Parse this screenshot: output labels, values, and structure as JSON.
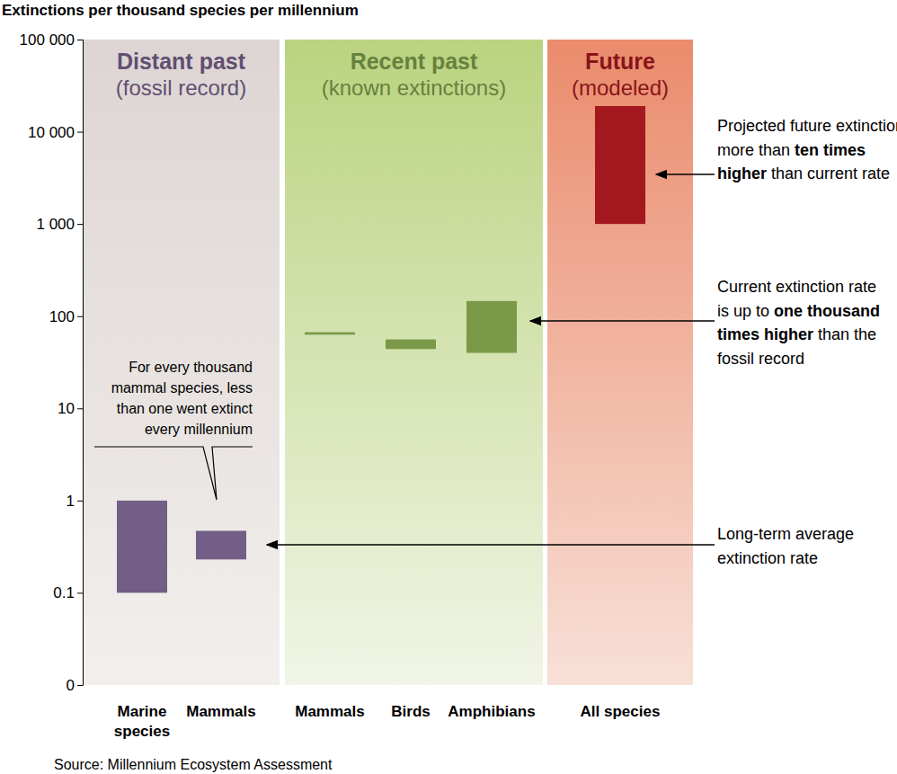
{
  "chart_data": {
    "type": "bar",
    "title": "Extinctions per thousand species per millennium",
    "log": "y",
    "ylim": [
      0.01,
      100000
    ],
    "yticks": [
      {
        "value": 0.01,
        "label": "0"
      },
      0.1,
      1,
      10,
      100,
      {
        "value": 1000,
        "label": "1 000"
      },
      {
        "value": 10000,
        "label": "10 000"
      },
      {
        "value": 100000,
        "label": "100 000"
      }
    ],
    "groups": [
      {
        "title": "Distant past",
        "subtitle": "(fossil record)",
        "color": "#735e87",
        "categories": [
          [
            "Marine",
            "species"
          ],
          [
            "Mammals"
          ]
        ],
        "values": [
          [
            0.1,
            1
          ],
          [
            0.23,
            0.47
          ]
        ]
      },
      {
        "title": "Recent past",
        "subtitle": "(known extinctions)",
        "color": "#7a9a4a",
        "categories": [
          [
            "Mammals"
          ],
          [
            "Birds"
          ],
          [
            "Amphibians"
          ]
        ],
        "values": [
          [
            63,
            67
          ],
          [
            44,
            56
          ],
          [
            40,
            146
          ]
        ]
      },
      {
        "title": "Future",
        "subtitle": "(modeled)",
        "color": "#a3181e",
        "categories": [
          [
            "All species"
          ]
        ],
        "values": [
          [
            1000,
            19000
          ]
        ]
      }
    ],
    "annotations": [
      {
        "lines": [
          "For every thousand",
          "mammal species, less",
          "than one went extinct",
          "every millennium"
        ]
      },
      {
        "lines": [
          "Projected future extinction rate is",
          "more than ten times",
          "higher than current rate"
        ],
        "emphasis": [
          "ten times",
          "higher"
        ]
      },
      {
        "lines": [
          "Current extinction rate",
          "is up to one thousand",
          "times higher than the",
          "fossil record"
        ],
        "emphasis": [
          "one thousand",
          "times higher"
        ]
      },
      {
        "lines": [
          "Long-term average",
          "extinction rate"
        ]
      }
    ],
    "source": "Source: Millennium Ecosystem Assessment"
  }
}
